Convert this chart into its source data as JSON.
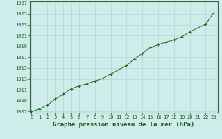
{
  "x": [
    0,
    1,
    2,
    3,
    4,
    5,
    6,
    7,
    8,
    9,
    10,
    11,
    12,
    13,
    14,
    15,
    16,
    17,
    18,
    19,
    20,
    21,
    22,
    23
  ],
  "y": [
    1007.0,
    1007.5,
    1008.2,
    1009.3,
    1010.2,
    1011.2,
    1011.7,
    1012.1,
    1012.6,
    1013.1,
    1013.9,
    1014.7,
    1015.5,
    1016.7,
    1017.7,
    1018.8,
    1019.3,
    1019.8,
    1020.2,
    1020.8,
    1021.7,
    1022.4,
    1023.1,
    1025.2
  ],
  "line_color": "#1a6b1a",
  "marker": "+",
  "xlabel": "Graphe pression niveau de la mer (hPa)",
  "ylim_min": 1007,
  "ylim_max": 1027,
  "xlim_min": 0,
  "xlim_max": 23,
  "yticks": [
    1007,
    1009,
    1011,
    1013,
    1015,
    1017,
    1019,
    1021,
    1023,
    1025,
    1027
  ],
  "xticks": [
    0,
    1,
    2,
    3,
    4,
    5,
    6,
    7,
    8,
    9,
    10,
    11,
    12,
    13,
    14,
    15,
    16,
    17,
    18,
    19,
    20,
    21,
    22,
    23
  ],
  "bg_color": "#ceecea",
  "grid_color": "#b0d8d4",
  "line_dark": "#1a5c1a",
  "border_color": "#336633",
  "tick_fontsize": 5.0,
  "xlabel_fontsize": 6.5
}
